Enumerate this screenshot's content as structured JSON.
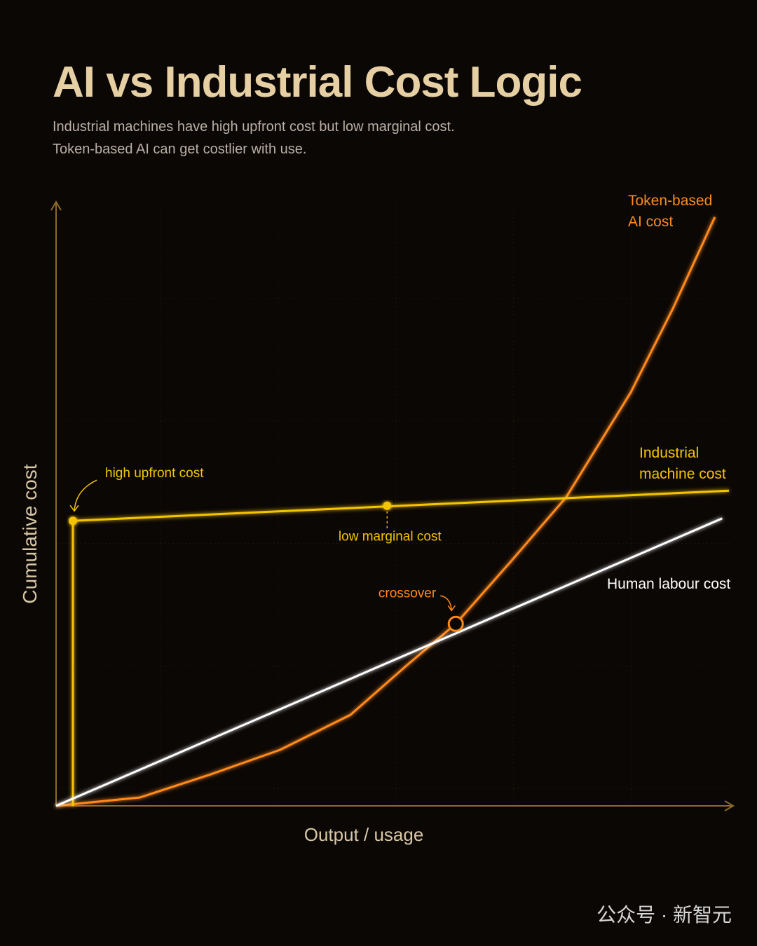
{
  "chart_data": {
    "type": "line",
    "title": "AI vs Industrial Cost Logic",
    "subtitle": [
      "Industrial machines have high upfront cost but low marginal cost.",
      "Token-based AI can get costlier with use."
    ],
    "xlabel": "Output / usage",
    "ylabel": "Cumulative cost",
    "xlim": [
      0,
      100
    ],
    "ylim": [
      0,
      100
    ],
    "grid": true,
    "series": [
      {
        "name": "Token-based AI cost",
        "color": "#ff8a1c",
        "x": [
          0,
          12.5,
          22.9,
          33.3,
          43.75,
          52.1,
          59.4,
          67.7,
          75.8,
          85.4,
          91.7,
          97.9
        ],
        "values": [
          0,
          1.4,
          5.2,
          9.3,
          15.1,
          23.3,
          30.2,
          40.7,
          51.2,
          68.6,
          82.6,
          97.7
        ]
      },
      {
        "name": "Industrial machine cost",
        "color": "#f5c400",
        "x": [
          2.5,
          2.5,
          100
        ],
        "values": [
          0,
          47.3,
          52.3
        ]
      },
      {
        "name": "Human labour cost",
        "color": "#ffffff",
        "x": [
          0,
          99
        ],
        "values": [
          0,
          47.7
        ]
      }
    ],
    "annotations": [
      {
        "text": "high upfront cost",
        "x": 2.5,
        "y": 47.3,
        "color": "#f5c400"
      },
      {
        "text": "low marginal cost",
        "x": 49.2,
        "y": 49.8,
        "color": "#f5c400"
      },
      {
        "text": "crossover",
        "x": 59.4,
        "y": 30.2,
        "color": "#ff8a1c"
      }
    ]
  },
  "watermark": "公众号 · 新智元"
}
